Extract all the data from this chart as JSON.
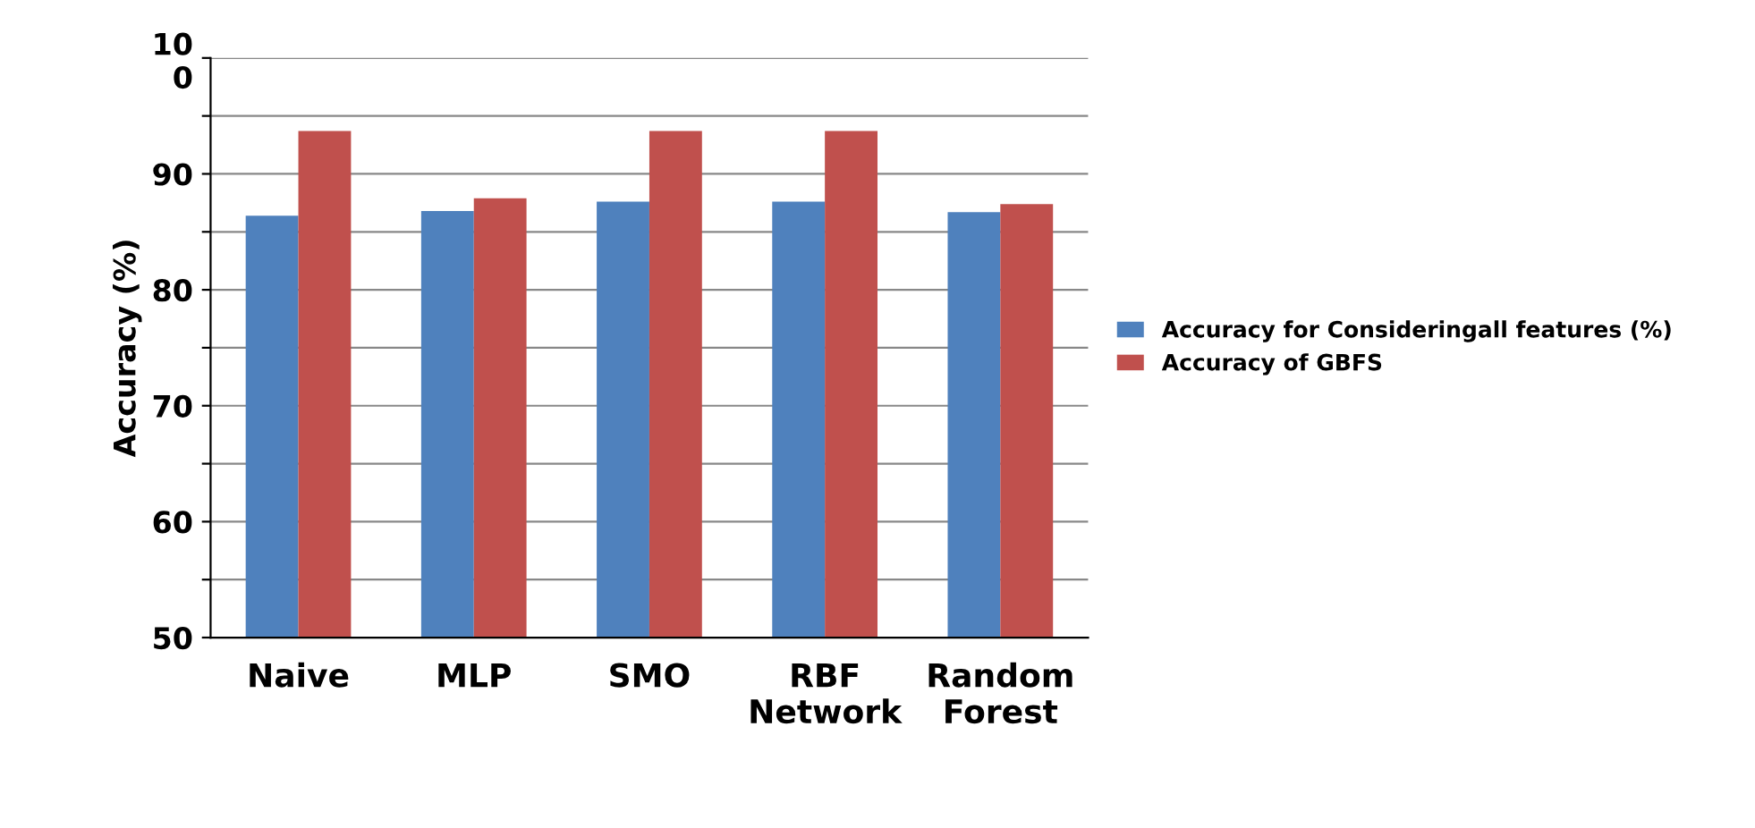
{
  "chart_data": {
    "type": "bar",
    "ylabel": "Accuracy (%)",
    "categories": [
      "Naive",
      "MLP",
      "SMO",
      "RBF\nNetwork",
      "Random\nForest"
    ],
    "series": [
      {
        "name": "Accuracy for Consideringall features (%)",
        "color": "#4f81bd",
        "values": [
          86.4,
          86.8,
          87.6,
          87.6,
          86.7
        ]
      },
      {
        "name": "Accuracy of GBFS",
        "color": "#c0504d",
        "values": [
          93.7,
          87.9,
          93.7,
          93.7,
          87.4
        ]
      }
    ],
    "ylim": [
      50,
      100
    ],
    "yticks": [
      50,
      {
        "value": 55,
        "label": null
      },
      60,
      {
        "value": 65,
        "label": null
      },
      70,
      {
        "value": 75,
        "label": null
      },
      80,
      {
        "value": 85,
        "label": null
      },
      90,
      {
        "value": 95,
        "label": null
      },
      {
        "value": 100,
        "label": "10\n0"
      }
    ],
    "grid": "y",
    "legend": "right"
  }
}
